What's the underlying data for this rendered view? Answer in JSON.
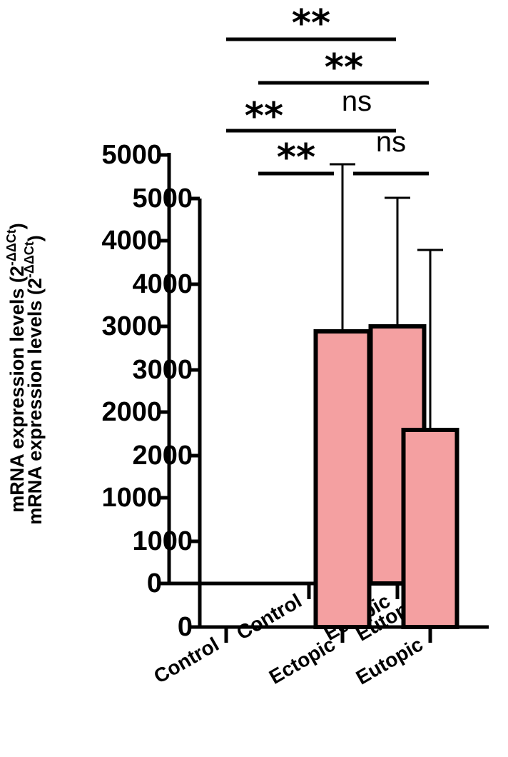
{
  "chart_data": [
    {
      "type": "bar",
      "ylabel": "mRNA expression levels (2",
      "ylabel_sup": "-ΔΔCt",
      "ylabel_close": ")",
      "ylim": [
        0,
        5000
      ],
      "yticks": [
        0,
        1000,
        2000,
        3000,
        4000,
        5000
      ],
      "ytick_labels": [
        "0",
        "1000",
        "2000",
        "3000",
        "4000",
        "5000"
      ],
      "categories": [
        "Control",
        "Ectopic",
        "Eutopic"
      ],
      "values": [
        0,
        3450,
        2300
      ],
      "error_upper": [
        0,
        5400,
        4400
      ],
      "bar_color": "#f4a0a1",
      "significance": [
        {
          "from": "Control",
          "to": "Ectopic",
          "label": "**"
        },
        {
          "from": "Ectopic",
          "to": "Eutopic",
          "label": "ns"
        },
        {
          "from": "Control",
          "to": "Eutopic",
          "label": "**"
        }
      ]
    },
    {
      "type": "bar",
      "ylabel": "mRNA expression levels (2",
      "ylabel_sup": "-ΔΔCt",
      "ylabel_close": ")",
      "ylim": [
        0,
        5000
      ],
      "yticks": [
        0,
        1000,
        2000,
        3000,
        4000,
        5000
      ],
      "ytick_labels": [
        "0",
        "1000",
        "2000",
        "3000",
        "4000",
        "5000"
      ],
      "categories": [
        "Control",
        "Ectopic",
        "Eutopic"
      ],
      "values": [
        0,
        3000,
        120
      ],
      "error_upper": [
        0,
        4500,
        250
      ],
      "bar_color": "#f4a0a1",
      "significance": [
        {
          "from": "Control",
          "to": "Ectopic",
          "label": "**"
        },
        {
          "from": "Ectopic",
          "to": "Eutopic",
          "label": "ns"
        },
        {
          "from": "Control",
          "to": "Eutopic",
          "label": "**"
        }
      ]
    }
  ]
}
